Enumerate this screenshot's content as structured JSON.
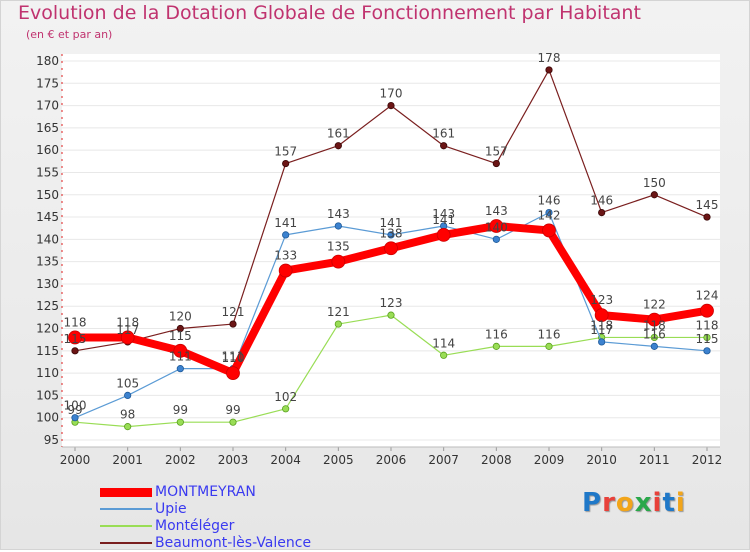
{
  "header": {
    "title": "Evolution de la Dotation Globale de Fonctionnement par Habitant",
    "subtitle": "(en € et par an)"
  },
  "logo": {
    "text": "Proxiti",
    "colors": [
      "#1f78c8",
      "#e8413a",
      "#f2a51a",
      "#2aa84a",
      "#e8413a",
      "#1f78c8",
      "#f2a51a"
    ]
  },
  "chart_data": {
    "type": "line",
    "title": "Evolution de la Dotation Globale de Fonctionnement par Habitant",
    "subtitle": "(en € et par an)",
    "x": [
      2000,
      2001,
      2002,
      2003,
      2004,
      2005,
      2006,
      2007,
      2008,
      2009,
      2010,
      2011,
      2012
    ],
    "ylim": [
      95,
      180
    ],
    "yticks": [
      95,
      100,
      105,
      110,
      115,
      120,
      125,
      130,
      135,
      140,
      145,
      150,
      155,
      160,
      165,
      170,
      175,
      180
    ],
    "grid": true,
    "legend_position": "bottom-left",
    "series": [
      {
        "name": "MONTMEYRAN",
        "color": "#ff0000",
        "values": [
          118,
          118,
          115,
          110,
          133,
          135,
          138,
          141,
          143,
          142,
          123,
          122,
          124
        ]
      },
      {
        "name": "Upie",
        "color": "#5b9bd5",
        "values": [
          100,
          105,
          111,
          111,
          141,
          143,
          141,
          143,
          140,
          146,
          117,
          116,
          115
        ]
      },
      {
        "name": "Montéléger",
        "color": "#99dd55",
        "values": [
          99,
          98,
          99,
          99,
          102,
          121,
          123,
          114,
          116,
          116,
          118,
          118,
          118
        ]
      },
      {
        "name": "Beaumont-lès-Valence",
        "color": "#7a1f1f",
        "values": [
          115,
          117,
          120,
          121,
          157,
          161,
          170,
          161,
          157,
          178,
          146,
          150,
          145
        ]
      }
    ]
  }
}
